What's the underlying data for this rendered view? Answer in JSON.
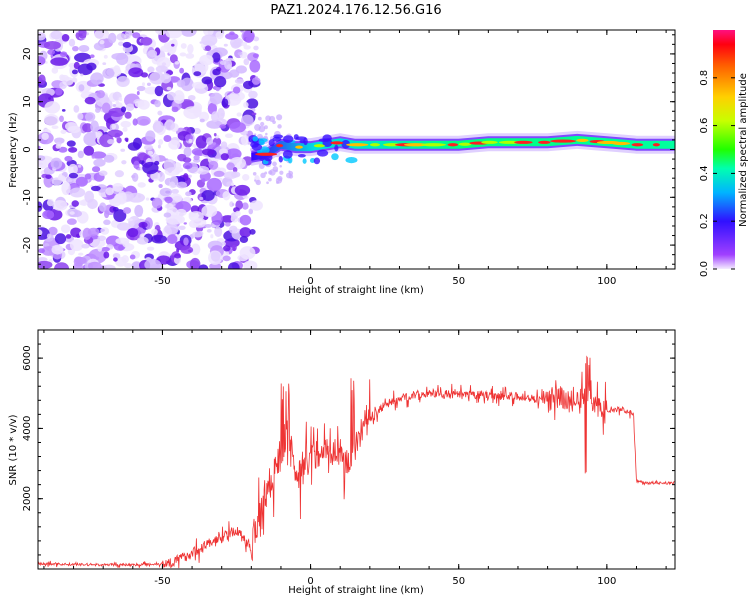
{
  "figure_title": "PAZ1.2024.176.12.56.G16",
  "chart_data": [
    {
      "type": "heatmap",
      "title": "PAZ1.2024.176.12.56.G16",
      "xlabel": "Height of straight line (km)",
      "ylabel": "Frequency (Hz)",
      "xlim": [
        -92,
        123
      ],
      "ylim": [
        -25,
        25
      ],
      "x_ticks": [
        -50,
        0,
        50,
        100
      ],
      "y_ticks": [
        -20,
        -10,
        0,
        10,
        20
      ],
      "grid": false,
      "signal_track": {
        "x": [
          -20,
          -15,
          -10,
          -5,
          0,
          5,
          10,
          15,
          20,
          30,
          40,
          50,
          60,
          70,
          80,
          90,
          100,
          110,
          123
        ],
        "center_freq": [
          -1.5,
          -1,
          1,
          0.5,
          0.5,
          1,
          1.5,
          1,
          1,
          1,
          1,
          1,
          1.5,
          1.5,
          1.5,
          2,
          1.5,
          1,
          1
        ]
      },
      "noise_region_x": [
        -92,
        -20
      ],
      "colorbar": {
        "label": "Normalized spectral amplitude",
        "range": [
          0,
          1
        ],
        "ticks": [
          "0.0",
          "0.2",
          "0.4",
          "0.6",
          "0.8"
        ],
        "tick_values": [
          0,
          0.2,
          0.4,
          0.6,
          0.8
        ],
        "colormap": "gist_rainbow_r"
      }
    },
    {
      "type": "line",
      "xlabel": "Height of straight line (km)",
      "ylabel": "SNR (10 * v/v)",
      "xlim": [
        -92,
        123
      ],
      "ylim": [
        0,
        6800
      ],
      "x_ticks": [
        -50,
        0,
        50,
        100
      ],
      "y_ticks": [
        2000,
        4000,
        6000
      ],
      "grid": false,
      "series": [
        {
          "color": "#ee3333",
          "x": [
            -92,
            -80,
            -70,
            -60,
            -50,
            -45,
            -40,
            -35,
            -30,
            -25,
            -20,
            -18,
            -15,
            -12,
            -10,
            -8,
            -5,
            -2,
            0,
            5,
            10,
            12,
            15,
            18,
            20,
            25,
            30,
            35,
            40,
            50,
            60,
            70,
            80,
            85,
            90,
            93,
            95,
            98,
            100,
            105,
            108,
            109,
            110,
            115,
            120,
            123
          ],
          "y": [
            150,
            130,
            120,
            120,
            150,
            250,
            450,
            700,
            900,
            1100,
            600,
            1500,
            2200,
            2800,
            3300,
            3800,
            2700,
            3000,
            3200,
            3400,
            3300,
            3000,
            3500,
            4100,
            4300,
            4650,
            4850,
            4950,
            5000,
            4950,
            4950,
            4900,
            4800,
            4850,
            4700,
            4900,
            4800,
            4550,
            4500,
            4550,
            4450,
            4400,
            2500,
            2450,
            2450,
            2450
          ]
        }
      ]
    }
  ]
}
